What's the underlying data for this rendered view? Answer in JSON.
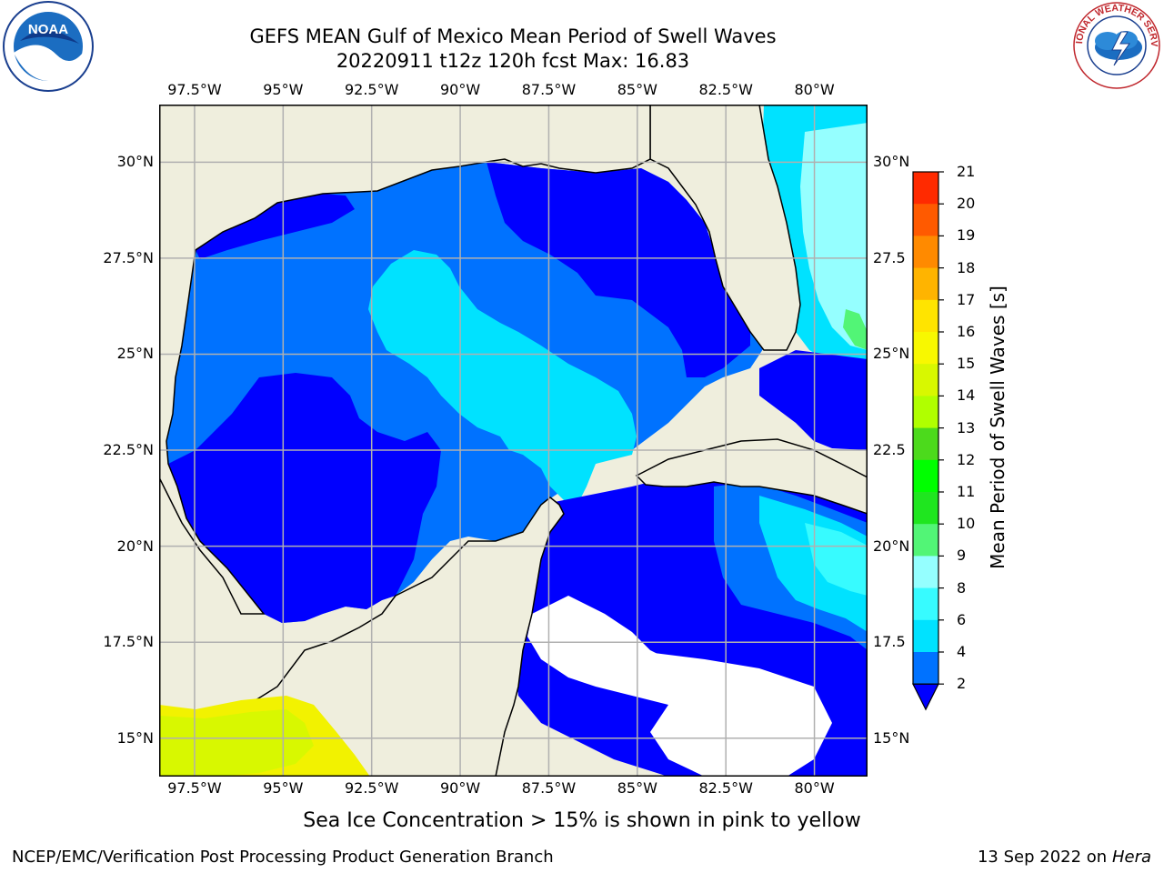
{
  "title": {
    "line1": "GEFS MEAN Gulf of Mexico Mean Period of Swell Waves",
    "line2": "20220911 t12z 120h fcst   Max: 16.83"
  },
  "map": {
    "extent": {
      "lon": [
        -98.5,
        -78.5
      ],
      "lat": [
        14,
        31.5
      ]
    },
    "lon_ticks": [
      {
        "lon": -97.5,
        "label": "97.5°W"
      },
      {
        "lon": -95,
        "label": "95°W"
      },
      {
        "lon": -92.5,
        "label": "92.5°W"
      },
      {
        "lon": -90,
        "label": "90°W"
      },
      {
        "lon": -87.5,
        "label": "87.5°W"
      },
      {
        "lon": -85,
        "label": "85°W"
      },
      {
        "lon": -82.5,
        "label": "82.5°W"
      },
      {
        "lon": -80,
        "label": "80°W"
      }
    ],
    "lat_ticks_left": [
      {
        "lat": 30,
        "label": "30°N"
      },
      {
        "lat": 27.5,
        "label": "27.5°N"
      },
      {
        "lat": 25,
        "label": "25°N"
      },
      {
        "lat": 22.5,
        "label": "22.5°N"
      },
      {
        "lat": 20,
        "label": "20°N"
      },
      {
        "lat": 17.5,
        "label": "17.5°N"
      },
      {
        "lat": 15,
        "label": "15°N"
      }
    ],
    "lat_ticks_right": [
      {
        "lat": 30,
        "label": "30°N"
      },
      {
        "lat": 27.5,
        "label": "27.5"
      },
      {
        "lat": 25,
        "label": "25°N"
      },
      {
        "lat": 22.5,
        "label": "22.5"
      },
      {
        "lat": 20,
        "label": "20°N"
      },
      {
        "lat": 17.5,
        "label": "17.5"
      },
      {
        "lat": 15,
        "label": "15°N"
      }
    ],
    "land_color": "#efeedd",
    "grid_color": "#b0b0b0"
  },
  "colorbar": {
    "title": "Mean Period of Swell Waves [s]",
    "levels": [
      "2",
      "4",
      "6",
      "8",
      "9",
      "10",
      "11",
      "12",
      "13",
      "14",
      "15",
      "16",
      "17",
      "18",
      "19",
      "20",
      "21"
    ],
    "colors": [
      "#0072ff",
      "#00e2ff",
      "#37fbff",
      "#95ffff",
      "#52f576",
      "#1fe61f",
      "#00ff00",
      "#4cda1c",
      "#b0ff00",
      "#d8f800",
      "#f8f800",
      "#ffe400",
      "#ffb400",
      "#ff8a00",
      "#ff5a00",
      "#ff2a00"
    ],
    "extend_color": "#0000ff"
  },
  "note": "Sea Ice Concentration > 15% is shown in pink to yellow",
  "footer": {
    "left": "NCEP/EMC/Verification Post Processing Product Generation Branch",
    "right_prefix": "13 Sep 2022 on",
    "right_host": "Hera"
  },
  "logos": {
    "noaa_text": "NOAA",
    "nws_text": "NATIONAL WEATHER SERVICE"
  }
}
